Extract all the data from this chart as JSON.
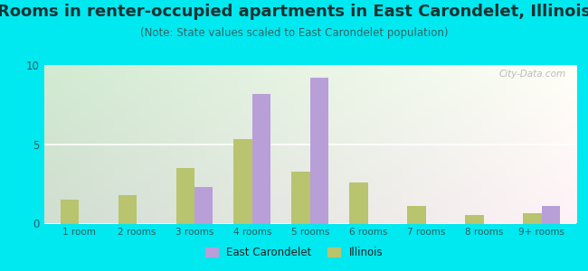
{
  "title": "Rooms in renter-occupied apartments in East Carondelet, Illinois",
  "subtitle": "(Note: State values scaled to East Carondelet population)",
  "categories": [
    "1 room",
    "2 rooms",
    "3 rooms",
    "4 rooms",
    "5 rooms",
    "6 rooms",
    "7 rooms",
    "8 rooms",
    "9+ rooms"
  ],
  "east_carondelet": [
    0,
    0,
    2.3,
    8.2,
    9.2,
    0,
    0,
    0,
    1.1
  ],
  "illinois": [
    1.5,
    1.8,
    3.5,
    5.3,
    3.3,
    2.6,
    1.1,
    0.55,
    0.65
  ],
  "color_ec": "#b89fd8",
  "color_il": "#b8c46e",
  "background_outer": "#00e8f0",
  "ylim": [
    0,
    10
  ],
  "yticks": [
    0,
    5,
    10
  ],
  "watermark": "City-Data.com",
  "legend_ec": "East Carondelet",
  "legend_il": "Illinois",
  "title_fontsize": 13,
  "subtitle_fontsize": 8.5,
  "bar_width": 0.32
}
